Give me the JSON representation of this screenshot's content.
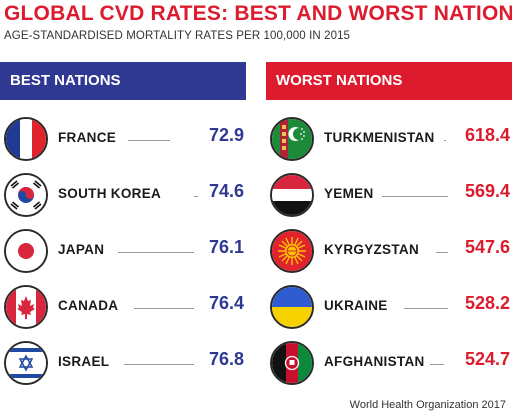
{
  "chart_data": {
    "type": "table",
    "title": "GLOBAL CVD RATES: BEST AND WORST NATIONS",
    "subtitle": "AGE-STANDARDISED MORTALITY RATES PER 100,000 IN 2015",
    "source": "World Health Organization 2017",
    "groups": [
      {
        "name": "BEST NATIONS",
        "color": "#2f3992",
        "rows": [
          {
            "country": "FRANCE",
            "value": "72.9",
            "flag_icon": "france-flag-icon"
          },
          {
            "country": "SOUTH KOREA",
            "value": "74.6",
            "flag_icon": "south-korea-flag-icon"
          },
          {
            "country": "JAPAN",
            "value": "76.1",
            "flag_icon": "japan-flag-icon"
          },
          {
            "country": "CANADA",
            "value": "76.4",
            "flag_icon": "canada-flag-icon"
          },
          {
            "country": "ISRAEL",
            "value": "76.8",
            "flag_icon": "israel-flag-icon"
          }
        ]
      },
      {
        "name": "WORST NATIONS",
        "color": "#dc1c2e",
        "rows": [
          {
            "country": "TURKMENISTAN",
            "value": "618.4",
            "flag_icon": "turkmenistan-flag-icon"
          },
          {
            "country": "YEMEN",
            "value": "569.4",
            "flag_icon": "yemen-flag-icon"
          },
          {
            "country": "KYRGYZSTAN",
            "value": "547.6",
            "flag_icon": "kyrgyzstan-flag-icon"
          },
          {
            "country": "UKRAINE",
            "value": "528.2",
            "flag_icon": "ukraine-flag-icon"
          },
          {
            "country": "AFGHANISTAN",
            "value": "524.7",
            "flag_icon": "afghanistan-flag-icon"
          }
        ]
      }
    ]
  }
}
